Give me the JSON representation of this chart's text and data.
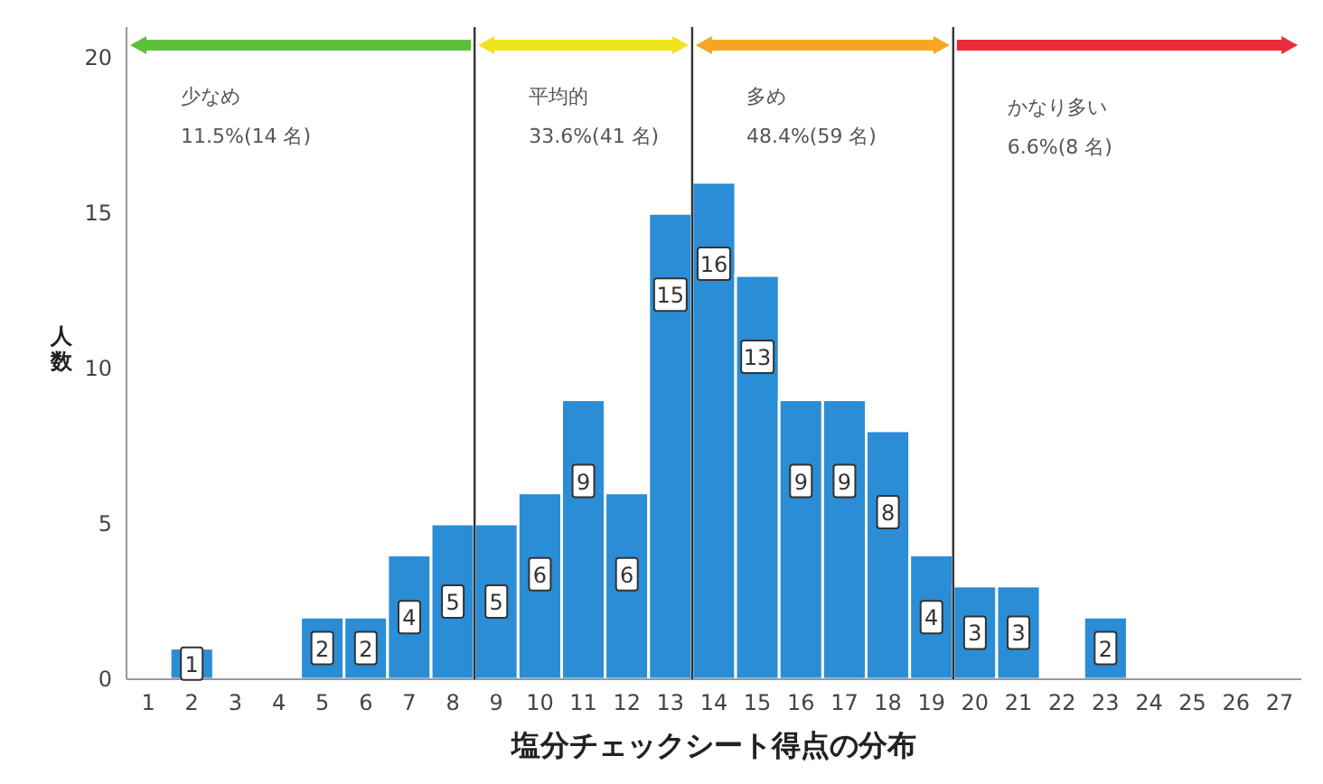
{
  "chart_data": {
    "type": "histogram",
    "xlabel": "塩分チェックシート得点の分布",
    "ylabel": "人数",
    "bins": [
      0.5,
      1.5,
      2.5,
      3.5,
      4.5,
      5.5,
      6.5,
      7.5,
      8.5,
      9.5,
      10.5,
      11.5,
      12.5,
      13.5,
      14.5,
      15.5,
      16.5,
      17.5,
      18.5,
      19.5,
      20.5,
      21.5,
      22.5,
      23.5,
      24.5,
      25.5,
      26.5,
      27.5
    ],
    "values": [
      0,
      1,
      0,
      0,
      2,
      2,
      4,
      5,
      5,
      6,
      9,
      6,
      15,
      16,
      13,
      9,
      9,
      8,
      4,
      3,
      3,
      0,
      2,
      0,
      0,
      0,
      0
    ],
    "value_labels": [
      null,
      "1",
      null,
      null,
      "2",
      "2",
      "4",
      "5",
      "5",
      "6",
      "9",
      "6",
      "15",
      "16",
      "13",
      "9",
      "9",
      "8",
      "4",
      "3",
      "3",
      null,
      "2",
      null,
      null,
      null,
      null
    ],
    "color": "#2a8dd6",
    "xlim": [
      0.5,
      27.5
    ],
    "ylim": [
      0,
      21
    ],
    "xticks": [
      1,
      2,
      3,
      4,
      5,
      6,
      7,
      8,
      9,
      10,
      11,
      12,
      13,
      14,
      15,
      16,
      17,
      18,
      19,
      20,
      21,
      22,
      23,
      24,
      25,
      26,
      27
    ],
    "yticks": [
      0,
      5,
      10,
      15,
      20
    ],
    "ref_lines": [
      {
        "axis": "x",
        "value": 8.5,
        "color": "#333333"
      },
      {
        "axis": "x",
        "value": 13.5,
        "color": "#333333"
      },
      {
        "axis": "x",
        "value": 19.5,
        "color": "#333333"
      }
    ],
    "annotations": [
      "少なめ\n11.5%(14 名)",
      "平均的\n33.6%(41 名)",
      "多め\n48.4%(59 名)",
      "かなり多い\n6.6%(8 名)"
    ],
    "grid": false
  }
}
